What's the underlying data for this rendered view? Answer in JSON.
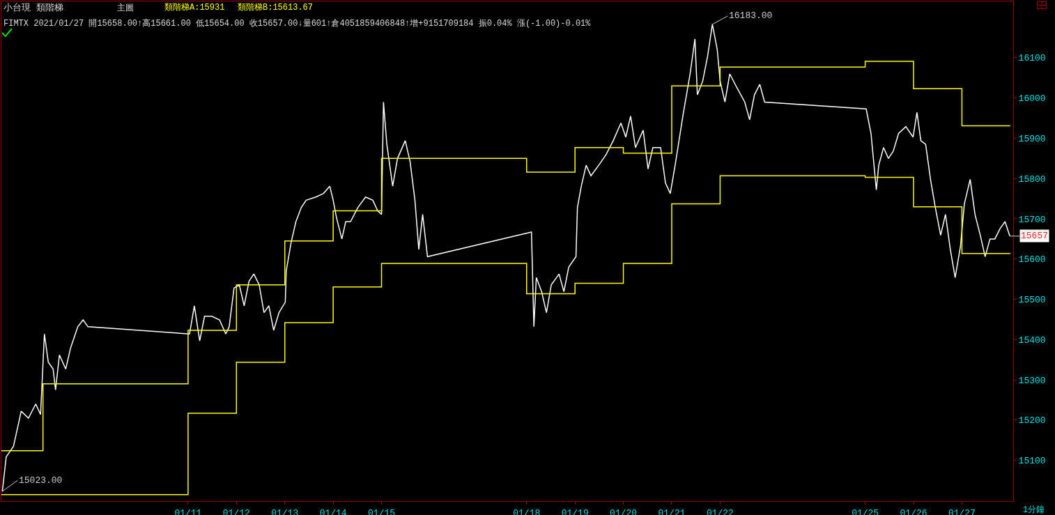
{
  "chart_data": {
    "type": "line",
    "title": "小台現 類階梯",
    "x": [
      "2021-01-07T03:50",
      "2021-01-07T05:46",
      "2021-01-07T09:22",
      "2021-01-07T13:12",
      "2021-01-07T16:48",
      "2021-01-07T20:24",
      "2021-01-07T22:48",
      "2021-01-08T00:43",
      "2021-01-08T02:38",
      "2021-01-08T05:02",
      "2021-01-08T06:14",
      "2021-01-08T08:10",
      "2021-01-08T11:17",
      "2021-01-08T13:41",
      "2021-01-08T17:17",
      "2021-01-08T19:55",
      "2021-01-08T22:19",
      "2021-01-11T00:43",
      "2021-01-11T03:07",
      "2021-01-11T05:46",
      "2021-01-11T08:10",
      "2021-01-11T11:46",
      "2021-01-11T15:36",
      "2021-01-11T18:43",
      "2021-01-11T20:24",
      "2021-01-11T22:48",
      "2021-01-12T01:26",
      "2021-01-12T03:50",
      "2021-01-12T06:14",
      "2021-01-12T08:38",
      "2021-01-12T11:17",
      "2021-01-12T13:41",
      "2021-01-12T16:05",
      "2021-01-12T18:29",
      "2021-01-12T21:07",
      "2021-01-13T00:14",
      "2021-01-13T00:43",
      "2021-01-13T03:07",
      "2021-01-13T05:31",
      "2021-01-13T08:10",
      "2021-01-13T10:34",
      "2021-01-13T15:22",
      "2021-01-13T19:12",
      "2021-01-13T22:19",
      "2021-01-14T00:00",
      "2021-01-14T01:41",
      "2021-01-14T04:19",
      "2021-01-14T06:14",
      "2021-01-14T08:38",
      "2021-01-14T12:14",
      "2021-01-14T16:05",
      "2021-01-14T19:41",
      "2021-01-14T22:05",
      "2021-01-15T00:00",
      "2021-01-15T00:58",
      "2021-01-15T02:38",
      "2021-01-15T05:31",
      "2021-01-15T07:55",
      "2021-01-15T11:46",
      "2021-01-15T14:10",
      "2021-01-15T16:34",
      "2021-01-15T18:29",
      "2021-01-15T20:24",
      "2021-01-15T22:48",
      "2021-01-18T02:24",
      "2021-01-18T03:36",
      "2021-01-18T04:48",
      "2021-01-18T07:26",
      "2021-01-18T09:50",
      "2021-01-18T12:14",
      "2021-01-18T16:05",
      "2021-01-18T18:29",
      "2021-01-18T20:53",
      "2021-01-19T00:29",
      "2021-01-19T01:12",
      "2021-01-19T03:07",
      "2021-01-19T05:31",
      "2021-01-19T07:55",
      "2021-01-19T11:46",
      "2021-01-19T15:22",
      "2021-01-19T18:58",
      "2021-01-19T22:48",
      "2021-01-20T01:12",
      "2021-01-20T03:36",
      "2021-01-20T06:00",
      "2021-01-20T09:50",
      "2021-01-20T12:14",
      "2021-01-20T14:38",
      "2021-01-20T18:29",
      "2021-01-20T20:53",
      "2021-01-20T23:17",
      "2021-01-21T01:41",
      "2021-01-21T05:31",
      "2021-01-21T09:07",
      "2021-01-21T11:31",
      "2021-01-21T12:43",
      "2021-01-21T15:22",
      "2021-01-21T17:46",
      "2021-01-21T20:10",
      "2021-01-21T22:34",
      "2021-01-22T00:00",
      "2021-01-22T02:24",
      "2021-01-22T04:48",
      "2021-01-22T08:24",
      "2021-01-22T12:14",
      "2021-01-22T14:38",
      "2021-01-22T17:02",
      "2021-01-22T19:41",
      "2021-01-22T22:05",
      "2021-01-25T00:29",
      "2021-01-25T02:53",
      "2021-01-25T05:31",
      "2021-01-25T06:43",
      "2021-01-25T09:07",
      "2021-01-25T11:31",
      "2021-01-25T13:55",
      "2021-01-25T16:34",
      "2021-01-25T20:10",
      "2021-01-25T23:46",
      "2021-01-26T01:41",
      "2021-01-26T03:36",
      "2021-01-26T06:00",
      "2021-01-26T08:24",
      "2021-01-26T10:48",
      "2021-01-26T13:26",
      "2021-01-26T15:50",
      "2021-01-26T18:14",
      "2021-01-26T20:38",
      "2021-01-26T23:17",
      "2021-01-27T01:12",
      "2021-01-27T04:05",
      "2021-01-27T06:29",
      "2021-01-27T09:07",
      "2021-01-27T11:31",
      "2021-01-27T13:55",
      "2021-01-27T16:19",
      "2021-01-27T18:58",
      "2021-01-27T21:22",
      "2021-01-27T23:46"
    ],
    "series": [
      {
        "color": "#ffffff",
        "values": [
          15023,
          15109,
          15135,
          15222,
          15205,
          15240,
          15214,
          15414,
          15344,
          15327,
          15275,
          15362,
          15327,
          15379,
          15432,
          15449,
          15432,
          15414,
          15484,
          15397,
          15458,
          15458,
          15449,
          15414,
          15432,
          15528,
          15536,
          15484,
          15545,
          15563,
          15536,
          15467,
          15484,
          15423,
          15467,
          15493,
          15571,
          15641,
          15693,
          15728,
          15746,
          15754,
          15763,
          15781,
          15746,
          15702,
          15650,
          15693,
          15693,
          15728,
          15754,
          15746,
          15720,
          15711,
          15990,
          15885,
          15781,
          15850,
          15894,
          15842,
          15746,
          15624,
          15711,
          15606,
          15667,
          15432,
          15554,
          15519,
          15467,
          15536,
          15563,
          15519,
          15580,
          15606,
          15728,
          15781,
          15833,
          15807,
          15833,
          15859,
          15894,
          15938,
          15903,
          15955,
          15877,
          15920,
          15824,
          15877,
          15877,
          15789,
          15763,
          15833,
          15955,
          16060,
          16147,
          16008,
          16042,
          16103,
          16183,
          16121,
          16042,
          15990,
          16060,
          16025,
          15990,
          15946,
          16008,
          16034,
          15990,
          15973,
          15912,
          15772,
          15833,
          15877,
          15850,
          15868,
          15912,
          15929,
          15903,
          15964,
          15894,
          15885,
          15798,
          15728,
          15659,
          15711,
          15624,
          15554,
          15632,
          15737,
          15798,
          15711,
          15659,
          15606,
          15650,
          15650,
          15676,
          15693,
          15657
        ]
      },
      {
        "type": "step",
        "color": "#ffff00",
        "x": [
          "2021-01-07T03:22",
          "2021-01-08",
          "2021-01-11",
          "2021-01-12",
          "2021-01-13",
          "2021-01-14",
          "2021-01-15",
          "2021-01-18",
          "2021-01-19",
          "2021-01-20",
          "2021-01-21",
          "2021-01-22",
          "2021-01-25",
          "2021-01-26",
          "2021-01-27",
          "2021-01-28"
        ],
        "values": [
          15124,
          15290,
          15423,
          15536,
          15645,
          15720,
          15850,
          15816,
          15877,
          15863,
          16030,
          16077,
          16091,
          16023,
          15931,
          15931
        ]
      },
      {
        "type": "step",
        "color": "#ffff00",
        "x": [
          "2021-01-07T03:22",
          "2021-01-08",
          "2021-01-11",
          "2021-01-12",
          "2021-01-13",
          "2021-01-14",
          "2021-01-15",
          "2021-01-18",
          "2021-01-19",
          "2021-01-20",
          "2021-01-21",
          "2021-01-22",
          "2021-01-25",
          "2021-01-26",
          "2021-01-27",
          "2021-01-28"
        ],
        "values": [
          15015,
          15015,
          15217,
          15344,
          15442,
          15531,
          15589,
          15514,
          15540,
          15589,
          15737,
          15807,
          15803,
          15730,
          15614,
          15614
        ]
      }
    ],
    "xlim": [
      "2021-01-07T03:22",
      "2021-01-28T01:26"
    ],
    "xticks": [
      {
        "value": "2021-01-11",
        "label": "01/11"
      },
      {
        "value": "2021-01-12",
        "label": "01/12"
      },
      {
        "value": "2021-01-13",
        "label": "01/13"
      },
      {
        "value": "2021-01-14",
        "label": "01/14"
      },
      {
        "value": "2021-01-15",
        "label": "01/15"
      },
      {
        "value": "2021-01-18",
        "label": "01/18"
      },
      {
        "value": "2021-01-19",
        "label": "01/19"
      },
      {
        "value": "2021-01-20",
        "label": "01/20"
      },
      {
        "value": "2021-01-21",
        "label": "01/21"
      },
      {
        "value": "2021-01-22",
        "label": "01/22"
      },
      {
        "value": "2021-01-25",
        "label": "01/25"
      },
      {
        "value": "2021-01-26",
        "label": "01/26"
      },
      {
        "value": "2021-01-27",
        "label": "01/27"
      }
    ],
    "ylim": [
      14999,
      16240
    ],
    "yticks": [
      15100,
      15200,
      15300,
      15400,
      15500,
      15600,
      15700,
      15800,
      15900,
      16000,
      16100
    ],
    "grid": false,
    "marker": "none",
    "line_style": "solid",
    "annotations": [
      "主圖",
      "類階梯A:15931",
      "類階梯B:15613.67",
      "FIMTX 2021/01/27 開15658.00↑高15661.00 低15654.00 收15657.00↓量601↑倉4051859406848↑增+9151709184 振0.04% 漲(-1.00)-0.01%",
      "1分鐘",
      {
        "text": "16183.00",
        "x": "2021-01-21T20:10",
        "y": 16183
      },
      {
        "text": "15023.00",
        "x": "2021-01-07T03:50",
        "y": 15023
      },
      {
        "text": "15657",
        "x": "2021-01-27T23:46",
        "y": 15657
      }
    ]
  }
}
